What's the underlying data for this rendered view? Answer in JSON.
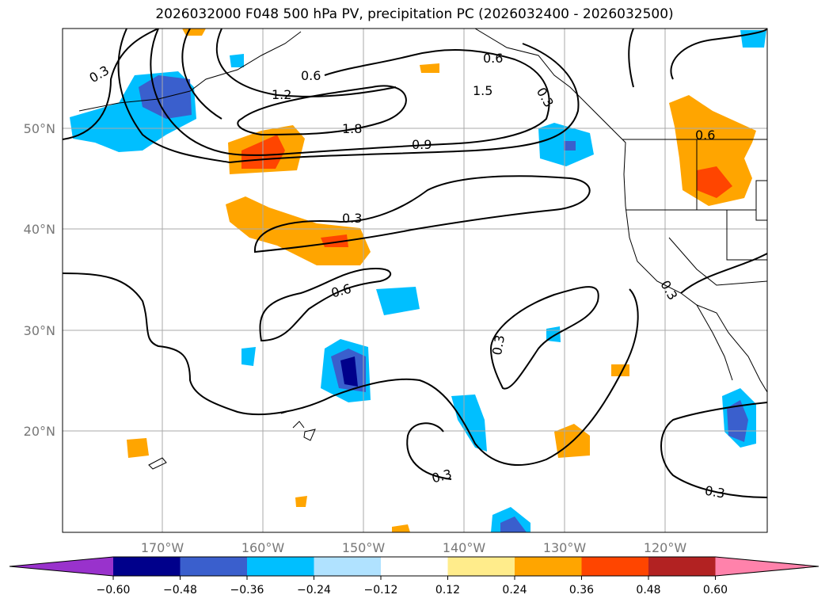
{
  "title": "2026032000 F048 500 hPa PV, precipitation PC (2026032400 - 2026032500)",
  "map": {
    "lon_labels": [
      "170°W",
      "160°W",
      "150°W",
      "140°W",
      "130°W",
      "120°W"
    ],
    "lat_labels": [
      "50°N",
      "40°N",
      "30°N",
      "20°N"
    ],
    "contour_labels": [
      "0.3",
      "0.6",
      "1.2",
      "1.8",
      "0.9",
      "1.5",
      "0.6",
      "0.3",
      "0.6",
      "0.3",
      "0.3",
      "0.3",
      "0.6",
      "0.3",
      "0.3"
    ]
  },
  "colorbar": {
    "ticks": [
      "−0.60",
      "−0.48",
      "−0.36",
      "−0.24",
      "−0.12",
      "0.12",
      "0.24",
      "0.36",
      "0.48",
      "0.60"
    ],
    "colors": [
      "#9932cc",
      "#00008b",
      "#3a5fcd",
      "#00bfff",
      "#b0e2ff",
      "#ffffff",
      "#ffec8b",
      "#ffa500",
      "#ff4500",
      "#b22222",
      "#ff82ab"
    ]
  }
}
